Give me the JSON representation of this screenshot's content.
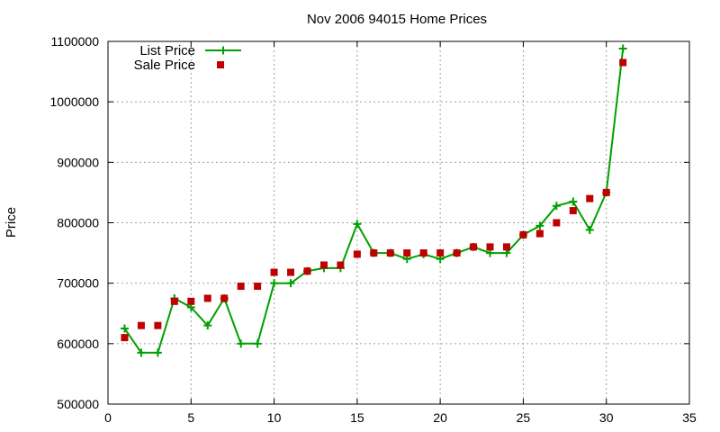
{
  "chart_data": {
    "type": "line",
    "title": "Nov 2006 94015 Home Prices",
    "xlabel": "",
    "ylabel": "Price",
    "xlim": [
      0,
      35
    ],
    "ylim": [
      500000,
      1100000
    ],
    "xticks": [
      0,
      5,
      10,
      15,
      20,
      25,
      30,
      35
    ],
    "yticks": [
      500000,
      600000,
      700000,
      800000,
      900000,
      1000000,
      1100000
    ],
    "grid": true,
    "legend": "top-left",
    "series": [
      {
        "name": "List Price",
        "style": "line-plus",
        "color": "#00a000",
        "points": [
          [
            1,
            625000
          ],
          [
            2,
            585000
          ],
          [
            3,
            585000
          ],
          [
            4,
            675000
          ],
          [
            5,
            660000
          ],
          [
            6,
            630000
          ],
          [
            7,
            675000
          ],
          [
            8,
            600000
          ],
          [
            9,
            600000
          ],
          [
            10,
            700000
          ],
          [
            11,
            700000
          ],
          [
            12,
            720000
          ],
          [
            13,
            725000
          ],
          [
            14,
            725000
          ],
          [
            15,
            798000
          ],
          [
            16,
            750000
          ],
          [
            17,
            750000
          ],
          [
            18,
            740000
          ],
          [
            19,
            748000
          ],
          [
            20,
            740000
          ],
          [
            21,
            750000
          ],
          [
            22,
            760000
          ],
          [
            23,
            750000
          ],
          [
            24,
            750000
          ],
          [
            25,
            780000
          ],
          [
            26,
            795000
          ],
          [
            27,
            828000
          ],
          [
            28,
            835000
          ],
          [
            29,
            788000
          ],
          [
            30,
            850000
          ],
          [
            31,
            1088000
          ]
        ]
      },
      {
        "name": "Sale Price",
        "style": "square-markers",
        "color": "#c00000",
        "points": [
          [
            1,
            610000
          ],
          [
            2,
            630000
          ],
          [
            3,
            630000
          ],
          [
            4,
            670000
          ],
          [
            5,
            670000
          ],
          [
            6,
            675000
          ],
          [
            7,
            675000
          ],
          [
            8,
            695000
          ],
          [
            9,
            695000
          ],
          [
            10,
            718000
          ],
          [
            11,
            718000
          ],
          [
            12,
            720000
          ],
          [
            13,
            730000
          ],
          [
            14,
            730000
          ],
          [
            15,
            748000
          ],
          [
            16,
            750000
          ],
          [
            17,
            750000
          ],
          [
            18,
            750000
          ],
          [
            19,
            750000
          ],
          [
            20,
            750000
          ],
          [
            21,
            750000
          ],
          [
            22,
            760000
          ],
          [
            23,
            760000
          ],
          [
            24,
            760000
          ],
          [
            25,
            780000
          ],
          [
            26,
            782000
          ],
          [
            27,
            800000
          ],
          [
            28,
            820000
          ],
          [
            29,
            840000
          ],
          [
            30,
            850000
          ],
          [
            31,
            1065000
          ]
        ]
      }
    ]
  }
}
